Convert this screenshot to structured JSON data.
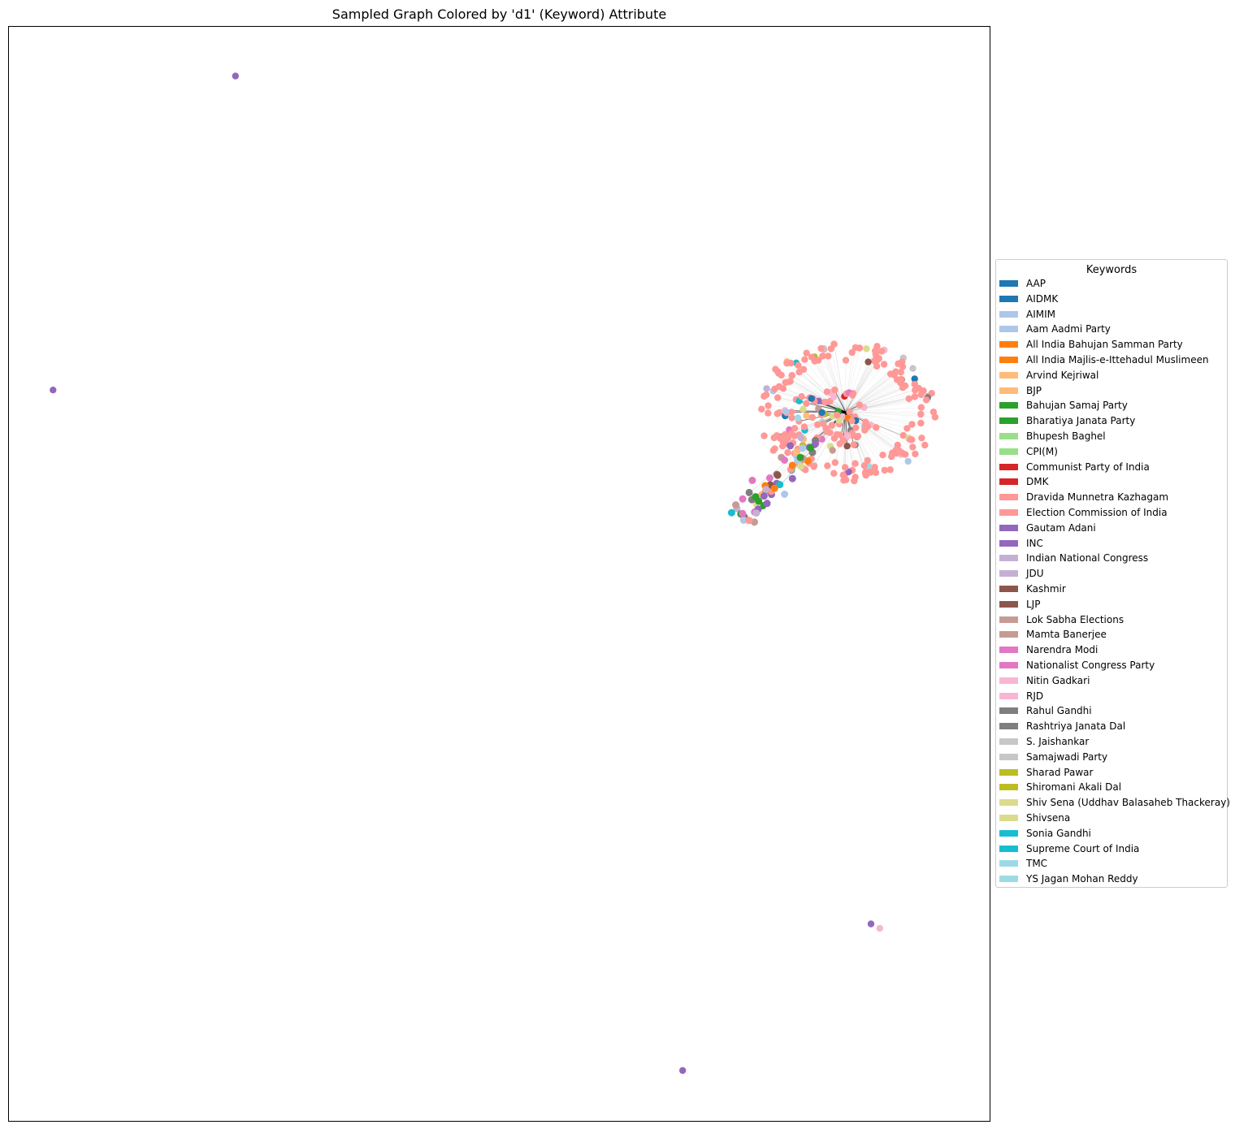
{
  "chart_data": {
    "type": "scatter",
    "title": "Sampled Graph Colored by 'd1' (Keyword) Attribute",
    "xlabel": "",
    "ylabel": "",
    "grid": false,
    "axes_ticks": false,
    "legend": {
      "title": "Keywords",
      "placement": "center-right outside plot",
      "entries": [
        {
          "label": "AAP",
          "color": "#1f77b4"
        },
        {
          "label": "AIDMK",
          "color": "#1f77b4"
        },
        {
          "label": "AIMIM",
          "color": "#aec7e8"
        },
        {
          "label": "Aam Aadmi Party",
          "color": "#aec7e8"
        },
        {
          "label": "All India Bahujan Samman Party",
          "color": "#ff7f0e"
        },
        {
          "label": "All India Majlis-e-Ittehadul Muslimeen",
          "color": "#ff7f0e"
        },
        {
          "label": "Arvind Kejriwal",
          "color": "#ffbb78"
        },
        {
          "label": "BJP",
          "color": "#ffbb78"
        },
        {
          "label": "Bahujan Samaj Party",
          "color": "#2ca02c"
        },
        {
          "label": "Bharatiya Janata Party",
          "color": "#2ca02c"
        },
        {
          "label": "Bhupesh Baghel",
          "color": "#98df8a"
        },
        {
          "label": "CPI(M)",
          "color": "#98df8a"
        },
        {
          "label": "Communist Party of India",
          "color": "#d62728"
        },
        {
          "label": "DMK",
          "color": "#d62728"
        },
        {
          "label": "Dravida Munnetra Kazhagam",
          "color": "#ff9896"
        },
        {
          "label": "Election Commission of India",
          "color": "#ff9896"
        },
        {
          "label": "Gautam Adani",
          "color": "#9467bd"
        },
        {
          "label": "INC",
          "color": "#9467bd"
        },
        {
          "label": "Indian National Congress",
          "color": "#c5b0d5"
        },
        {
          "label": "JDU",
          "color": "#c5b0d5"
        },
        {
          "label": "Kashmir",
          "color": "#8c564b"
        },
        {
          "label": "LJP",
          "color": "#8c564b"
        },
        {
          "label": "Lok Sabha Elections",
          "color": "#c49c94"
        },
        {
          "label": "Mamta Banerjee",
          "color": "#c49c94"
        },
        {
          "label": "Narendra Modi",
          "color": "#e377c2"
        },
        {
          "label": "Nationalist Congress Party",
          "color": "#e377c2"
        },
        {
          "label": "Nitin Gadkari",
          "color": "#f7b6d2"
        },
        {
          "label": "RJD",
          "color": "#f7b6d2"
        },
        {
          "label": "Rahul Gandhi",
          "color": "#7f7f7f"
        },
        {
          "label": "Rashtriya Janata Dal",
          "color": "#7f7f7f"
        },
        {
          "label": "S. Jaishankar",
          "color": "#c7c7c7"
        },
        {
          "label": "Samajwadi Party",
          "color": "#c7c7c7"
        },
        {
          "label": "Sharad Pawar",
          "color": "#bcbd22"
        },
        {
          "label": "Shiromani Akali Dal",
          "color": "#bcbd22"
        },
        {
          "label": "Shiv Sena (Uddhav Balasaheb Thackeray)",
          "color": "#dbdb8d"
        },
        {
          "label": "Shivsena",
          "color": "#dbdb8d"
        },
        {
          "label": "Sonia Gandhi",
          "color": "#17becf"
        },
        {
          "label": "Supreme Court of India",
          "color": "#17becf"
        },
        {
          "label": "TMC",
          "color": "#9edae5"
        },
        {
          "label": "YS Jagan Mohan Reddy",
          "color": "#9edae5"
        }
      ]
    },
    "isolated_nodes": [
      {
        "x": 0.231,
        "y": 0.955,
        "group": "Gautam Adani"
      },
      {
        "x": 0.045,
        "y": 0.668,
        "group": "Gautam Adani"
      },
      {
        "x": 0.879,
        "y": 0.18,
        "group": "Gautam Adani"
      },
      {
        "x": 0.888,
        "y": 0.176,
        "group": "Nitin Gadkari"
      },
      {
        "x": 0.687,
        "y": 0.046,
        "group": "Gautam Adani"
      }
    ],
    "cluster": {
      "hub": {
        "x": 0.853,
        "y": 0.648
      },
      "dominant_group": "Dravida Munnetra Kazhagam",
      "ring_radius": {
        "x": 0.085,
        "y": 0.063
      },
      "ring_node_count": 170,
      "inner_node_count": 95,
      "tail_start": {
        "x": 0.815,
        "y": 0.62
      },
      "tail_end": {
        "x": 0.745,
        "y": 0.55
      },
      "tail_node_count": 60,
      "edge_color": "#000000"
    }
  }
}
